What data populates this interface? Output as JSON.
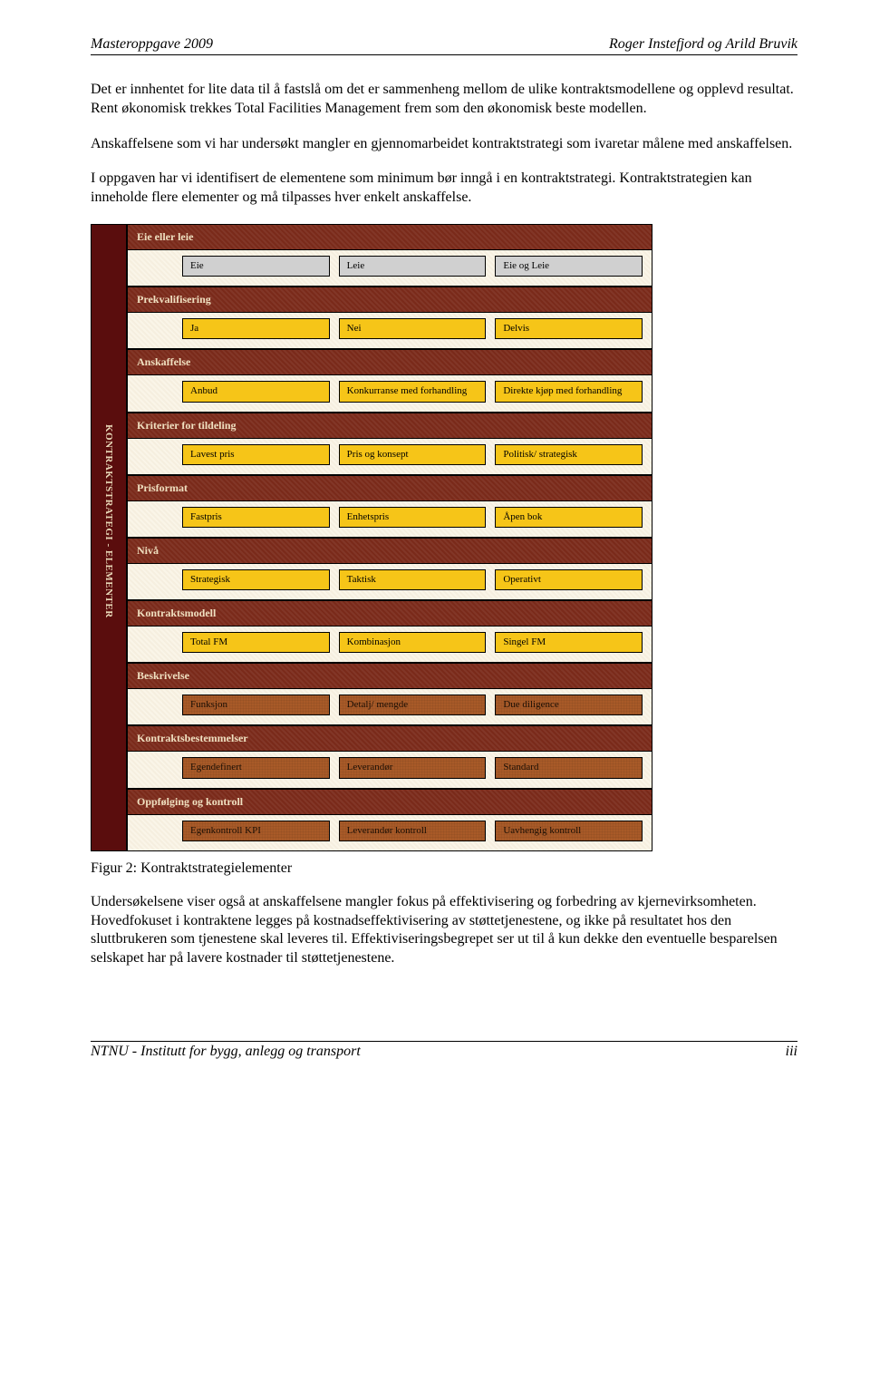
{
  "header": {
    "left": "Masteroppgave 2009",
    "right": "Roger Instefjord og Arild Bruvik"
  },
  "paragraphs": {
    "p1": "Det er innhentet for lite data til å fastslå om det er sammenheng mellom de ulike kontraktsmodellene og opplevd resultat. Rent økonomisk trekkes Total Facilities Management frem som den økonomisk beste modellen.",
    "p2": "Anskaffelsene som vi har undersøkt mangler en gjennomarbeidet kontraktstrategi som ivaretar målene med anskaffelsen.",
    "p3": "I oppgaven har vi identifisert de elementene som minimum bør inngå i en kontraktstrategi. Kontraktstrategien kan inneholde flere elementer og må tilpasses hver enkelt anskaffelse.",
    "p4": "Undersøkelsene viser også at anskaffelsene mangler fokus på effektivisering og forbedring av kjernevirksomheten. Hovedfokuset i kontraktene legges på kostnadseffektivisering av støttetjenestene, og ikke på resultatet hos den sluttbrukeren som tjenestene skal leveres til. Effektiviseringsbegrepet ser ut til å kun dekke den eventuelle besparelsen selskapet har på lavere kostnader til støttetjenestene."
  },
  "diagram": {
    "side_label": "KONTRAKTSTRATEGI - ELEMENTER",
    "sections": [
      {
        "title": "Eie eller leie",
        "style": "grey",
        "options": [
          "Eie",
          "Leie",
          "Eie og Leie"
        ]
      },
      {
        "title": "Prekvalifisering",
        "style": "yellow",
        "options": [
          "Ja",
          "Nei",
          "Delvis"
        ]
      },
      {
        "title": "Anskaffelse",
        "style": "yellow",
        "options": [
          "Anbud",
          "Konkurranse med forhandling",
          "Direkte kjøp med forhandling"
        ]
      },
      {
        "title": "Kriterier for tildeling",
        "style": "yellow",
        "options": [
          "Lavest pris",
          "Pris og konsept",
          "Politisk/ strategisk"
        ]
      },
      {
        "title": "Prisformat",
        "style": "yellow",
        "options": [
          "Fastpris",
          "Enhetspris",
          "Åpen bok"
        ]
      },
      {
        "title": "Nivå",
        "style": "yellow",
        "options": [
          "Strategisk",
          "Taktisk",
          "Operativt"
        ]
      },
      {
        "title": "Kontraktsmodell",
        "style": "yellow",
        "options": [
          "Total FM",
          "Kombinasjon",
          "Singel FM"
        ]
      },
      {
        "title": "Beskrivelse",
        "style": "brown",
        "options": [
          "Funksjon",
          "Detalj/ mengde",
          "Due diligence"
        ]
      },
      {
        "title": "Kontraktsbestemmelser",
        "style": "brown",
        "options": [
          "Egendefinert",
          "Leverandør",
          "Standard"
        ]
      },
      {
        "title": "Oppfølging og kontroll",
        "style": "brown",
        "options": [
          "Egenkontroll KPI",
          "Leverandør kontroll",
          "Uavhengig kontroll"
        ]
      }
    ]
  },
  "figure_caption": "Figur 2: Kontraktstrategielementer",
  "footer": {
    "left": "NTNU - Institutt for bygg, anlegg og transport",
    "right": "iii"
  }
}
